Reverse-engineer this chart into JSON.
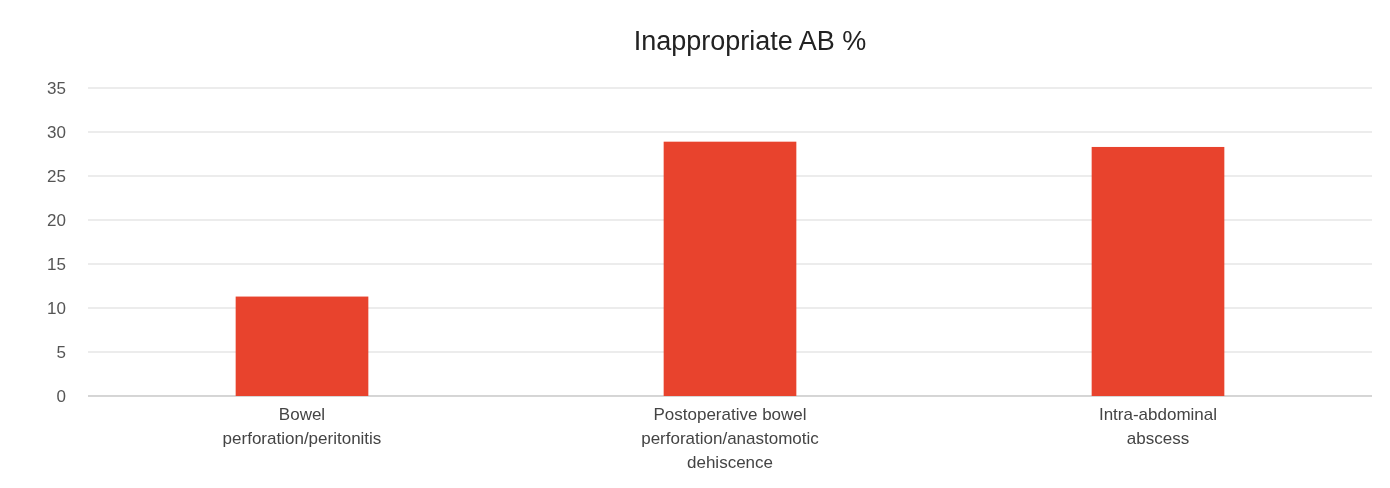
{
  "chart_data": {
    "type": "bar",
    "title": "Inappropriate AB %",
    "categories": [
      "Bowel perforation/peritonitis",
      "Postoperative bowel perforation/anastomotic dehiscence",
      "Intra-abdominal abscess"
    ],
    "values": [
      11.3,
      28.9,
      28.3
    ],
    "color": "#e8432d",
    "ylim": [
      0,
      35
    ],
    "yticks": [
      0,
      5,
      10,
      15,
      20,
      25,
      30,
      35
    ],
    "grid": "y"
  }
}
